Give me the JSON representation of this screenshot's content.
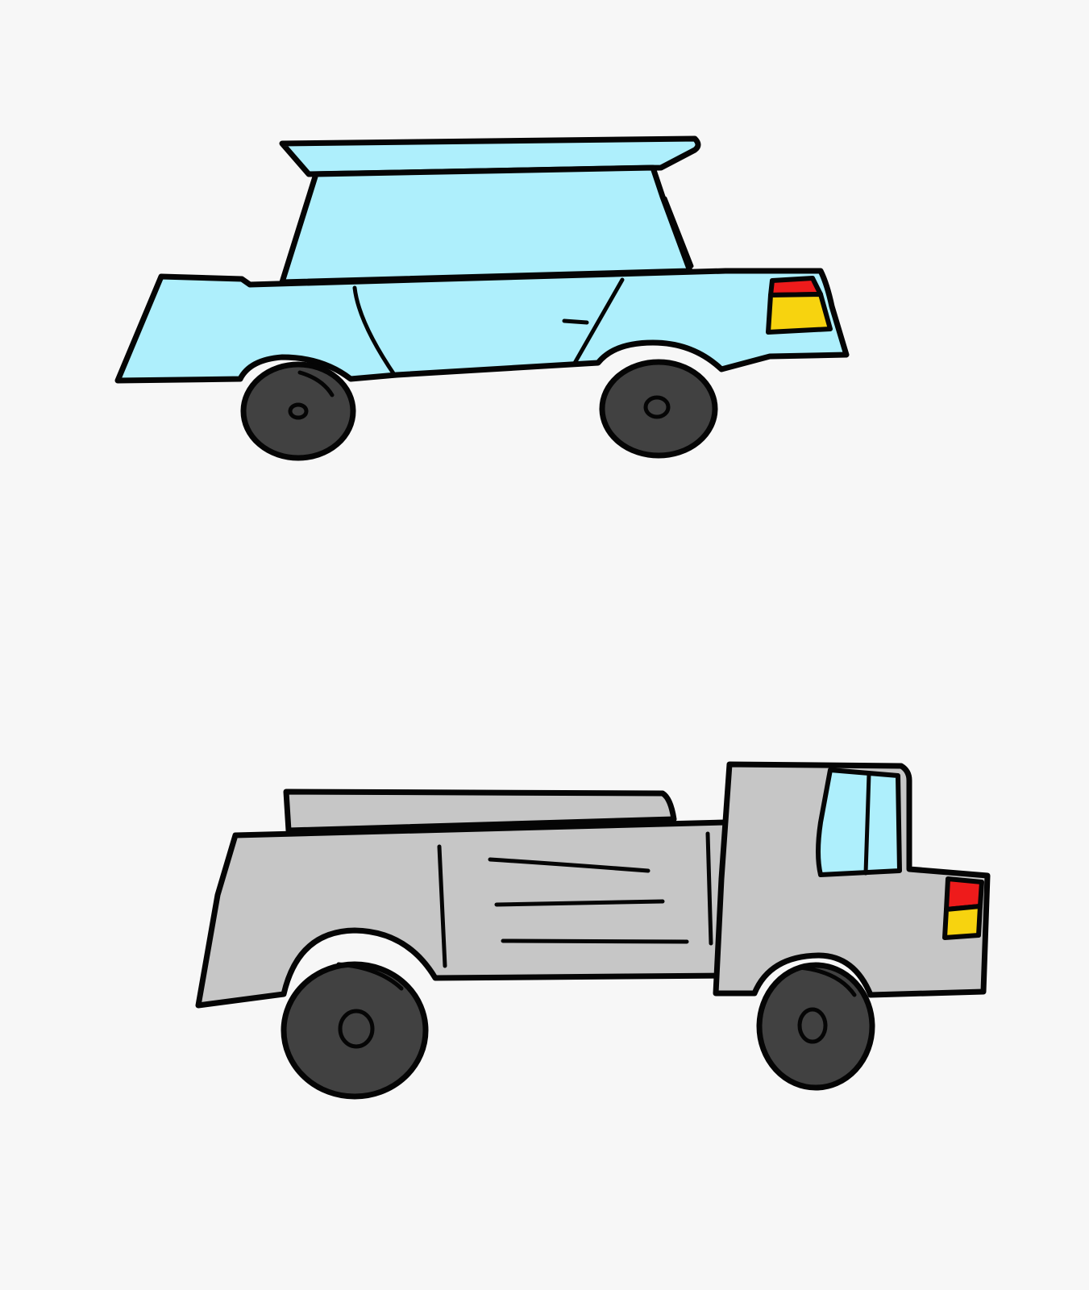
{
  "colors": {
    "background": "#f7f7f7",
    "outline": "#050505",
    "car_body": "#aeeffc",
    "truck_body": "#c6c6c6",
    "truck_window": "#aeeffc",
    "tire": "#414141",
    "light_red": "#ee1b1b",
    "light_yellow": "#f7d30f"
  },
  "drawings": [
    {
      "subject": "car"
    },
    {
      "subject": "truck"
    }
  ]
}
